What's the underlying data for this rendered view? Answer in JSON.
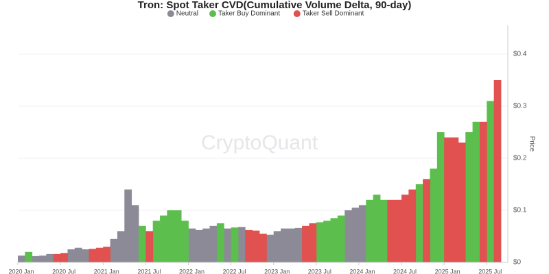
{
  "chart_data": {
    "type": "bar",
    "title": "Tron: Spot Taker CVD(Cumulative Volume Delta, 90-day)",
    "watermark": "CryptoQuant",
    "y_axis_label": "Price",
    "x": [
      "2020-01",
      "2020-02",
      "2020-03",
      "2020-04",
      "2020-05",
      "2020-06",
      "2020-07",
      "2020-08",
      "2020-09",
      "2020-10",
      "2020-11",
      "2020-12",
      "2021-01",
      "2021-02",
      "2021-03",
      "2021-04",
      "2021-05",
      "2021-06",
      "2021-07",
      "2021-08",
      "2021-09",
      "2021-10",
      "2021-11",
      "2021-12",
      "2022-01",
      "2022-02",
      "2022-03",
      "2022-04",
      "2022-05",
      "2022-06",
      "2022-07",
      "2022-08",
      "2022-09",
      "2022-10",
      "2022-11",
      "2022-12",
      "2023-01",
      "2023-02",
      "2023-03",
      "2023-04",
      "2023-05",
      "2023-06",
      "2023-07",
      "2023-08",
      "2023-09",
      "2023-10",
      "2023-11",
      "2023-12",
      "2024-01",
      "2024-02",
      "2024-03",
      "2024-04",
      "2024-05",
      "2024-06",
      "2024-07",
      "2024-08",
      "2024-09",
      "2024-10",
      "2024-11",
      "2024-12",
      "2025-01",
      "2025-02",
      "2025-03",
      "2025-04",
      "2025-05",
      "2025-06",
      "2025-07",
      "2025-08"
    ],
    "series": [
      {
        "name": "Neutral",
        "color": "#8b8a96",
        "values": [
          0.013,
          null,
          0.012,
          0.013,
          0.016,
          null,
          null,
          0.025,
          0.028,
          0.025,
          null,
          null,
          null,
          0.045,
          0.06,
          0.14,
          0.11,
          null,
          null,
          null,
          null,
          null,
          null,
          null,
          0.065,
          0.062,
          0.065,
          0.07,
          null,
          0.065,
          null,
          0.068,
          null,
          null,
          null,
          0.053,
          0.06,
          0.065,
          0.065,
          0.066,
          null,
          null,
          null,
          null,
          null,
          null,
          0.1,
          0.105,
          0.11,
          null,
          null,
          null,
          null,
          null,
          null,
          null,
          null,
          null,
          null,
          null,
          null,
          null,
          null,
          null,
          null,
          null,
          null,
          null
        ]
      },
      {
        "name": "Taker Buy Dominant",
        "color": "#5cbf4d",
        "values": [
          null,
          0.02,
          null,
          null,
          null,
          null,
          null,
          null,
          null,
          null,
          null,
          null,
          null,
          null,
          null,
          null,
          null,
          0.07,
          null,
          0.08,
          0.09,
          0.1,
          0.1,
          0.08,
          null,
          null,
          null,
          null,
          0.075,
          null,
          0.067,
          null,
          null,
          null,
          null,
          null,
          null,
          null,
          null,
          null,
          null,
          null,
          0.077,
          0.08,
          0.085,
          0.09,
          null,
          null,
          null,
          0.12,
          0.13,
          0.12,
          null,
          null,
          null,
          null,
          0.15,
          null,
          0.18,
          0.25,
          null,
          null,
          null,
          0.25,
          0.27,
          null,
          0.31,
          null
        ]
      },
      {
        "name": "Taker Sell Dominant",
        "color": "#e0514f",
        "values": [
          null,
          null,
          null,
          null,
          null,
          0.016,
          0.018,
          null,
          null,
          null,
          0.026,
          0.028,
          0.03,
          null,
          null,
          null,
          null,
          null,
          0.06,
          null,
          null,
          null,
          null,
          null,
          null,
          null,
          null,
          null,
          null,
          null,
          null,
          null,
          0.062,
          0.061,
          0.055,
          null,
          null,
          null,
          null,
          null,
          0.07,
          0.075,
          null,
          null,
          null,
          null,
          null,
          null,
          null,
          null,
          null,
          null,
          0.12,
          0.12,
          0.13,
          0.14,
          null,
          0.16,
          null,
          null,
          0.24,
          0.24,
          0.23,
          null,
          null,
          0.27,
          null,
          0.35
        ]
      }
    ],
    "xticks": [
      {
        "value": "2020-01",
        "label": "2020 Jan"
      },
      {
        "value": "2020-07",
        "label": "2020 Jul"
      },
      {
        "value": "2021-01",
        "label": "2021 Jan"
      },
      {
        "value": "2021-07",
        "label": "2021 Jul"
      },
      {
        "value": "2022-01",
        "label": "2022 Jan"
      },
      {
        "value": "2022-07",
        "label": "2022 Jul"
      },
      {
        "value": "2023-01",
        "label": "2023 Jan"
      },
      {
        "value": "2023-07",
        "label": "2023 Jul"
      },
      {
        "value": "2024-01",
        "label": "2024 Jan"
      },
      {
        "value": "2024-07",
        "label": "2024 Jul"
      },
      {
        "value": "2025-01",
        "label": "2025 Jan"
      },
      {
        "value": "2025-07",
        "label": "2025 Jul"
      }
    ],
    "ylim": [
      0,
      0.45
    ],
    "yticks": [
      {
        "value": 0,
        "label": "$0"
      },
      {
        "value": 0.1,
        "label": "$0.1"
      },
      {
        "value": 0.2,
        "label": "$0.2"
      },
      {
        "value": 0.3,
        "label": "$0.3"
      },
      {
        "value": 0.4,
        "label": "$0.4"
      }
    ],
    "grid": true,
    "legend": "top"
  }
}
